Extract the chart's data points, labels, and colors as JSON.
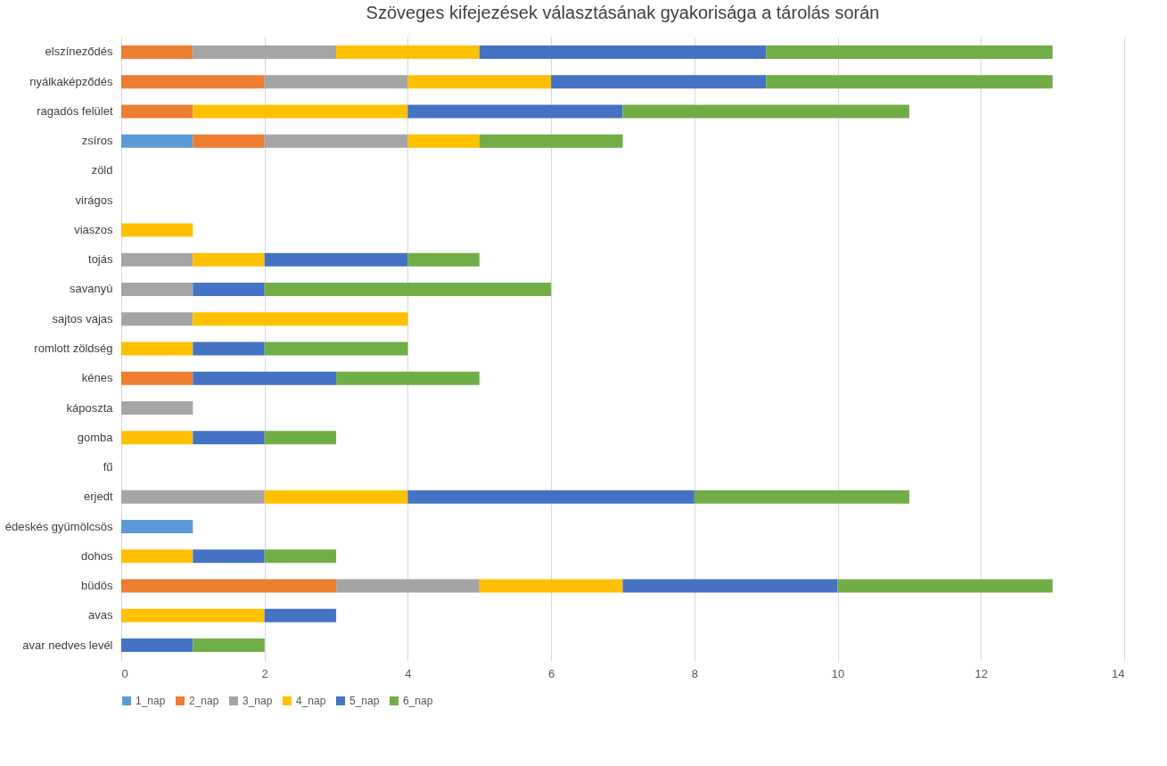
{
  "chart_data": {
    "type": "bar",
    "orientation": "horizontal",
    "stacked": true,
    "title": "Szöveges kifejezések választásának gyakorisága a tárolás során",
    "categories": [
      "elszíneződés",
      "nyálkaképződés",
      "ragadós felület",
      "zsíros",
      "zöld",
      "virágos",
      "viaszos",
      "tojás",
      "savanyú",
      "sajtos vajas",
      "romlott zöldség",
      "kénes",
      "káposzta",
      "gomba",
      "fű",
      "erjedt",
      "édeskés gyümölcsös",
      "dohos",
      "büdös",
      "avas",
      "avar nedves levél"
    ],
    "series": [
      {
        "name": "1_nap",
        "color": "#5b9bd5",
        "values": [
          0,
          0,
          0,
          1,
          0,
          0,
          0,
          0,
          0,
          0,
          0,
          0,
          0,
          0,
          0,
          0,
          1,
          0,
          0,
          0,
          0
        ]
      },
      {
        "name": "2_nap",
        "color": "#ed7d31",
        "values": [
          1,
          2,
          1,
          1,
          0,
          0,
          0,
          0,
          0,
          0,
          0,
          1,
          0,
          0,
          0,
          0,
          0,
          0,
          3,
          0,
          0
        ]
      },
      {
        "name": "3_nap",
        "color": "#a5a5a5",
        "values": [
          2,
          2,
          0,
          2,
          0,
          0,
          0,
          1,
          1,
          1,
          0,
          0,
          1,
          0,
          0,
          2,
          0,
          0,
          2,
          0,
          0
        ]
      },
      {
        "name": "4_nap",
        "color": "#ffc000",
        "values": [
          2,
          2,
          3,
          1,
          0,
          0,
          1,
          1,
          0,
          3,
          1,
          0,
          0,
          1,
          0,
          2,
          0,
          1,
          2,
          2,
          0
        ]
      },
      {
        "name": "5_nap",
        "color": "#4472c4",
        "values": [
          4,
          3,
          3,
          0,
          0,
          0,
          0,
          2,
          1,
          0,
          1,
          2,
          0,
          1,
          0,
          4,
          0,
          1,
          3,
          1,
          1
        ]
      },
      {
        "name": "6_nap",
        "color": "#70ad47",
        "values": [
          4,
          4,
          4,
          2,
          0,
          0,
          0,
          1,
          4,
          0,
          2,
          2,
          0,
          1,
          0,
          3,
          0,
          1,
          3,
          0,
          1
        ]
      }
    ],
    "xlim": [
      0,
      14
    ],
    "xticks": [
      0,
      2,
      4,
      6,
      8,
      10,
      12,
      14
    ],
    "grid": "x",
    "legend": "bottom"
  }
}
